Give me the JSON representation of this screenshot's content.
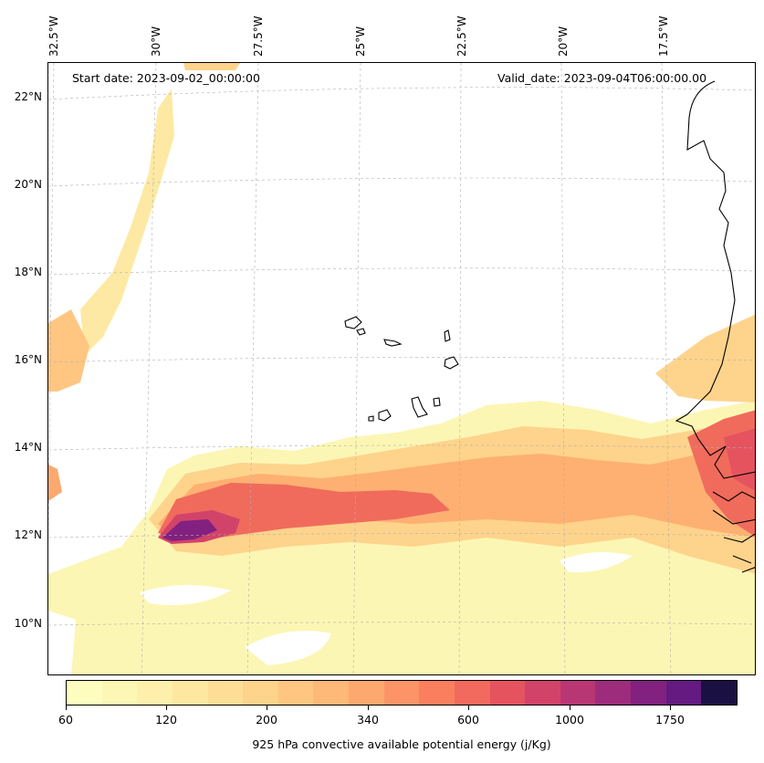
{
  "map": {
    "start_date": "Start date: 2023-09-02_00:00:00",
    "valid_date": "Valid_date: 2023-09-04T06:00:00.00",
    "lon_labels": [
      "32.5°W",
      "30°W",
      "27.5°W",
      "25°W",
      "22.5°W",
      "20°W",
      "17.5°W"
    ],
    "lat_labels": [
      "22°N",
      "20°N",
      "18°N",
      "16°N",
      "14°N",
      "12°N",
      "10°N"
    ],
    "gridlines": "on",
    "colors": {
      "land_outline": "#000000",
      "ocean": "#ffffff",
      "gridline": "#b0b0b0"
    }
  },
  "colorbar": {
    "title": "925 hPa convective available potential energy (j/Kg)",
    "tick_labels": [
      "60",
      "120",
      "200",
      "340",
      "600",
      "1000",
      "1750"
    ],
    "colors": [
      "#fcfdbf",
      "#fdf7b6",
      "#fef0ac",
      "#fee8a1",
      "#fede97",
      "#fed38c",
      "#fec681",
      "#feb878",
      "#fda86f",
      "#fc9467",
      "#f97f5f",
      "#f2695d",
      "#e5535f",
      "#d2436a",
      "#b93674",
      "#9e2c7c",
      "#82217f",
      "#641a80",
      "#1b1042"
    ]
  }
}
